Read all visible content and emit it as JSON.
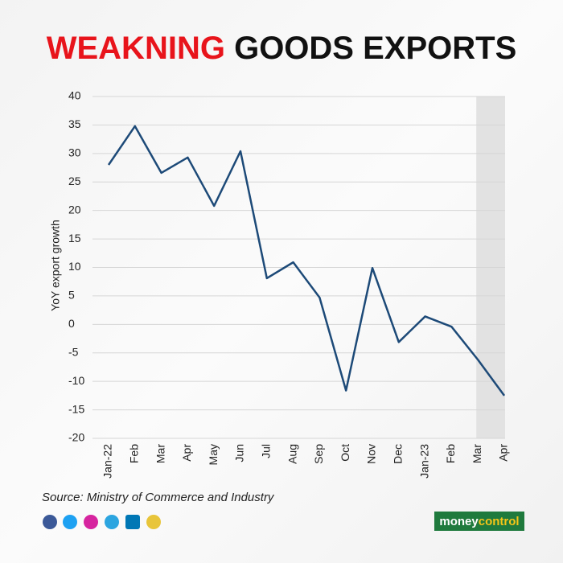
{
  "chart_data": {
    "type": "line",
    "title": [
      "WEAKNING",
      "GOODS EXPORTS"
    ],
    "title_colors": [
      "#e8141b",
      "#111111"
    ],
    "y_label": "YoY export growth",
    "categories": [
      "Jan-22",
      "Feb",
      "Mar",
      "Apr",
      "May",
      "Jun",
      "Jul",
      "Aug",
      "Sep",
      "Oct",
      "Nov",
      "Dec",
      "Jan-23",
      "Feb",
      "Mar",
      "Apr"
    ],
    "series": [
      {
        "name": "YoY export growth",
        "color": "#1d4a78",
        "values": [
          28,
          34.8,
          26.6,
          29.3,
          20.8,
          30.4,
          8.1,
          10.9,
          4.7,
          -11.6,
          9.9,
          -3.1,
          1.4,
          -0.4,
          -6.2,
          -12.5
        ]
      }
    ],
    "ylim": [
      -20,
      40
    ],
    "yticks": [
      -20,
      -15,
      -10,
      -5,
      0,
      5,
      10,
      15,
      20,
      25,
      30,
      35,
      40
    ],
    "grid": true,
    "shaded": [
      14,
      15
    ],
    "source": "Source: Ministry of Commerce and Industry",
    "brand": [
      "money",
      "control"
    ]
  }
}
